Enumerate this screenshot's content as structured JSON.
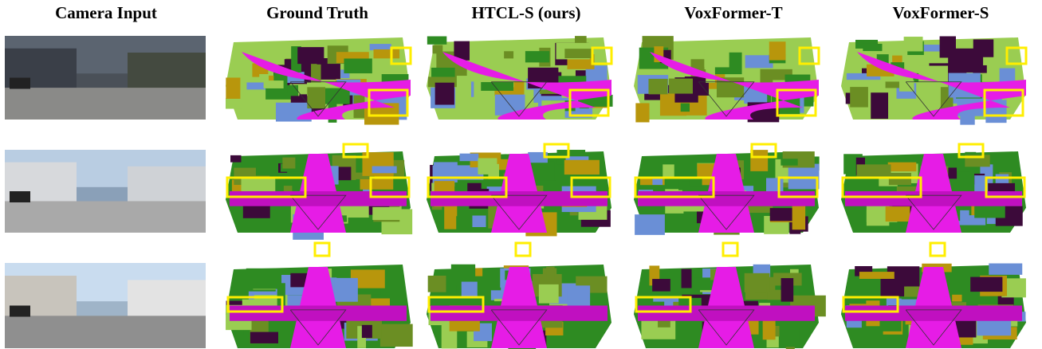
{
  "figure": {
    "columns": [
      "Camera Input",
      "Ground Truth",
      "HTCL-S (ours)",
      "VoxFormer-T",
      "VoxFormer-S"
    ]
  }
}
